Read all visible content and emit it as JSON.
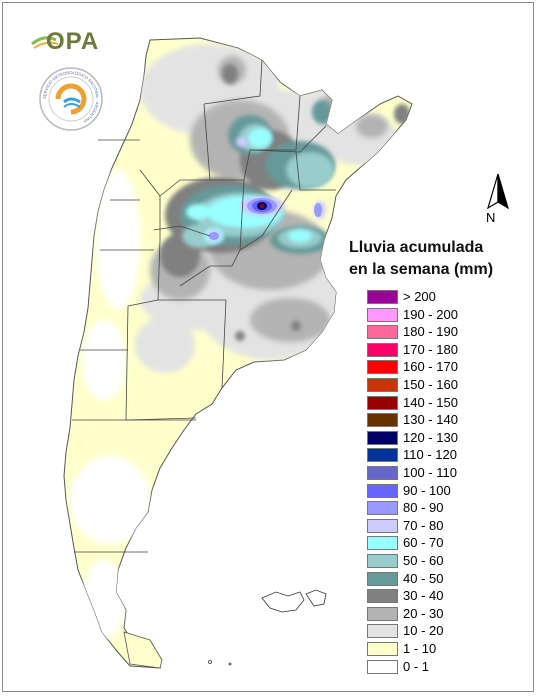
{
  "logo": {
    "text": "OPA"
  },
  "seal": {
    "text": "SERVICIO METEOROLÓGICO NACIONAL · ARGENTINA"
  },
  "north_arrow": {
    "label": "N"
  },
  "legend": {
    "title_line1": "Lluvia acumulada",
    "title_line2": "en la semana (mm)",
    "items": [
      {
        "label": "> 200",
        "color": "#990099"
      },
      {
        "label": "190 - 200",
        "color": "#ff99ff"
      },
      {
        "label": "180 - 190",
        "color": "#ff6699"
      },
      {
        "label": "170 - 180",
        "color": "#ff0066"
      },
      {
        "label": "160 - 170",
        "color": "#ff0000"
      },
      {
        "label": "150 - 160",
        "color": "#cc3300"
      },
      {
        "label": "140 - 150",
        "color": "#990000"
      },
      {
        "label": "130 - 140",
        "color": "#663300"
      },
      {
        "label": "120 - 130",
        "color": "#000066"
      },
      {
        "label": "110 - 120",
        "color": "#003399"
      },
      {
        "label": "100 - 110",
        "color": "#6666cc"
      },
      {
        "label": "90 - 100",
        "color": "#6666ff"
      },
      {
        "label": "80 - 90",
        "color": "#9999ff"
      },
      {
        "label": "70 - 80",
        "color": "#ccccff"
      },
      {
        "label": "60 - 70",
        "color": "#99ffff"
      },
      {
        "label": "50 - 60",
        "color": "#99cccc"
      },
      {
        "label": "40 - 50",
        "color": "#669999"
      },
      {
        "label": "30 - 40",
        "color": "#808080"
      },
      {
        "label": "20 - 30",
        "color": "#b3b3b3"
      },
      {
        "label": "10 - 20",
        "color": "#e3e3e3"
      },
      {
        "label": "1 - 10",
        "color": "#ffffcc"
      },
      {
        "label": "0 - 1",
        "color": "#ffffff"
      }
    ]
  }
}
